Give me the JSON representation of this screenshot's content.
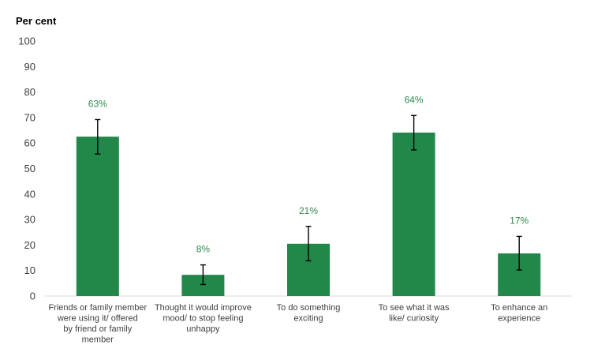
{
  "chart_data": {
    "type": "bar",
    "title": "",
    "ylabel": "Per cent",
    "xlabel": "",
    "ylim": [
      0,
      100
    ],
    "yticks": [
      0,
      10,
      20,
      30,
      40,
      50,
      60,
      70,
      80,
      90,
      100
    ],
    "grid": false,
    "legend": "none",
    "bar_color": "#21884a",
    "label_color": "#2f8a4f",
    "categories": [
      [
        "Friends or family member",
        "were using it/ offered",
        "by friend or family",
        "member"
      ],
      [
        "Thought it would improve",
        "mood/ to stop feeling",
        "unhappy"
      ],
      [
        "To do something",
        "exciting"
      ],
      [
        "To see what it was",
        "like/ curiosity"
      ],
      [
        "To enhance an",
        "experience"
      ]
    ],
    "values": [
      62.5,
      8.3,
      20.5,
      64.1,
      16.7
    ],
    "data_labels": [
      "63%",
      "8%",
      "21%",
      "64%",
      "17%"
    ],
    "error_low": [
      55.7,
      4.5,
      13.8,
      57.3,
      10.2
    ],
    "error_high": [
      69.2,
      12.2,
      27.3,
      70.8,
      23.4
    ]
  }
}
